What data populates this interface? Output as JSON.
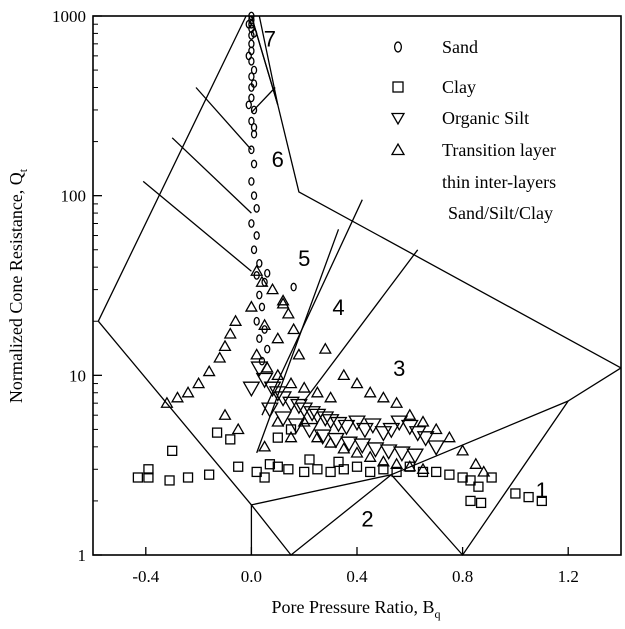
{
  "chart_data": {
    "type": "scatter",
    "xlabel": "Pore Pressure Ratio, B",
    "xlabel_sub": "q",
    "ylabel": "Normalized Cone Resistance, Q",
    "ylabel_sub": "t",
    "xlim": [
      -0.6,
      1.4
    ],
    "ylim": [
      1,
      1000
    ],
    "yscale": "log",
    "xticks": [
      {
        "value": -0.4,
        "label": "-0.4"
      },
      {
        "value": 0.0,
        "label": "0.0"
      },
      {
        "value": 0.4,
        "label": "0.4"
      },
      {
        "value": 0.8,
        "label": "0.8"
      },
      {
        "value": 1.2,
        "label": "1.2"
      }
    ],
    "yticks": [
      {
        "value": 1,
        "label": "1"
      },
      {
        "value": 10,
        "label": "10"
      },
      {
        "value": 100,
        "label": "100"
      },
      {
        "value": 1000,
        "label": "1000"
      }
    ],
    "grid": false,
    "legend_position": "top-right",
    "legend": [
      {
        "name": "Sand",
        "marker": "circle"
      },
      {
        "name": "Clay",
        "marker": "square"
      },
      {
        "name": "Organic Silt",
        "marker": "triangle-down"
      },
      {
        "name": "Transition layer",
        "marker": "triangle-up"
      }
    ],
    "legend_extra_lines": [
      "thin inter-layers",
      "Sand/Silt/Clay"
    ],
    "zone_labels": [
      {
        "label": "1",
        "x": 1.1,
        "y": 2.3
      },
      {
        "label": "2",
        "x": 0.44,
        "y": 1.6
      },
      {
        "label": "3",
        "x": 0.56,
        "y": 11
      },
      {
        "label": "4",
        "x": 0.33,
        "y": 24
      },
      {
        "label": "5",
        "x": 0.2,
        "y": 45
      },
      {
        "label": "6",
        "x": 0.1,
        "y": 160
      },
      {
        "label": "7",
        "x": 0.07,
        "y": 750
      }
    ],
    "zone_boundaries": [
      [
        [
          -0.58,
          20
        ],
        [
          -0.02,
          1000
        ]
      ],
      [
        [
          -0.58,
          20
        ],
        [
          0.0,
          1.9
        ]
      ],
      [
        [
          0.0,
          1.9
        ],
        [
          0.15,
          1
        ],
        [
          0.53,
          2.8
        ],
        [
          0.8,
          1
        ],
        [
          1.2,
          7.2
        ],
        [
          1.4,
          11
        ]
      ],
      [
        [
          0.0,
          1000
        ],
        [
          0.1,
          320
        ],
        [
          0.18,
          105
        ],
        [
          1.4,
          11
        ]
      ],
      [
        [
          0.0,
          1000
        ],
        [
          0.1,
          320
        ],
        [
          0.03,
          1000
        ]
      ],
      [
        [
          0.53,
          2.8
        ],
        [
          1.2,
          7.2
        ]
      ],
      [
        [
          0.0,
          1.9
        ],
        [
          0.53,
          2.8
        ]
      ],
      [
        [
          0.0,
          1.9
        ],
        [
          0.0,
          1
        ]
      ],
      [
        [
          -0.21,
          400
        ],
        [
          0.0,
          180
        ]
      ],
      [
        [
          -0.3,
          210
        ],
        [
          0.0,
          80
        ]
      ],
      [
        [
          -0.41,
          120
        ],
        [
          0.0,
          38
        ]
      ],
      [
        [
          0.09,
          400
        ],
        [
          0.0,
          290
        ]
      ],
      [
        [
          0.02,
          3.7
        ],
        [
          0.33,
          65
        ]
      ],
      [
        [
          0.04,
          6.0
        ],
        [
          0.42,
          95
        ]
      ],
      [
        [
          0.2,
          7.2
        ],
        [
          0.63,
          50
        ]
      ]
    ],
    "series": [
      {
        "name": "Sand",
        "marker": "circle",
        "points": [
          [
            0.0,
            1000
          ],
          [
            0.0,
            950
          ],
          [
            0.0,
            900
          ],
          [
            0.0,
            850
          ],
          [
            0.0,
            780
          ],
          [
            0.0,
            700
          ],
          [
            0.0,
            640
          ],
          [
            0.0,
            560
          ],
          [
            0.01,
            500
          ],
          [
            0.0,
            460
          ],
          [
            0.0,
            400
          ],
          [
            0.0,
            350
          ],
          [
            0.01,
            300
          ],
          [
            0.0,
            260
          ],
          [
            0.01,
            220
          ],
          [
            0.0,
            180
          ],
          [
            0.01,
            150
          ],
          [
            0.0,
            120
          ],
          [
            0.01,
            100
          ],
          [
            0.02,
            85
          ],
          [
            0.0,
            70
          ],
          [
            0.02,
            60
          ],
          [
            0.01,
            50
          ],
          [
            0.03,
            42
          ],
          [
            0.02,
            36
          ],
          [
            0.06,
            37
          ],
          [
            0.05,
            33
          ],
          [
            0.16,
            31
          ],
          [
            0.03,
            28
          ],
          [
            0.04,
            24
          ],
          [
            0.02,
            20
          ],
          [
            0.05,
            18
          ],
          [
            0.03,
            16
          ],
          [
            0.06,
            14
          ],
          [
            0.04,
            12
          ],
          [
            -0.01,
            900
          ],
          [
            0.01,
            800
          ],
          [
            -0.01,
            600
          ],
          [
            0.01,
            420
          ],
          [
            -0.01,
            320
          ],
          [
            0.01,
            240
          ]
        ]
      },
      {
        "name": "Clay",
        "marker": "square",
        "points": [
          [
            -0.43,
            2.7
          ],
          [
            -0.39,
            3.0
          ],
          [
            -0.39,
            2.7
          ],
          [
            -0.31,
            2.6
          ],
          [
            -0.3,
            3.8
          ],
          [
            -0.24,
            2.7
          ],
          [
            -0.16,
            2.8
          ],
          [
            -0.13,
            4.8
          ],
          [
            -0.05,
            3.1
          ],
          [
            -0.08,
            4.4
          ],
          [
            0.02,
            2.9
          ],
          [
            0.05,
            2.7
          ],
          [
            0.07,
            3.2
          ],
          [
            0.1,
            3.1
          ],
          [
            0.14,
            3.0
          ],
          [
            0.2,
            2.9
          ],
          [
            0.25,
            3.0
          ],
          [
            0.3,
            2.9
          ],
          [
            0.35,
            3.0
          ],
          [
            0.4,
            3.1
          ],
          [
            0.45,
            2.9
          ],
          [
            0.5,
            3.0
          ],
          [
            0.55,
            2.9
          ],
          [
            0.6,
            3.1
          ],
          [
            0.65,
            2.9
          ],
          [
            0.7,
            2.9
          ],
          [
            0.75,
            2.8
          ],
          [
            0.8,
            2.7
          ],
          [
            0.83,
            2.6
          ],
          [
            0.86,
            2.4
          ],
          [
            0.83,
            2.0
          ],
          [
            0.87,
            1.95
          ],
          [
            0.91,
            2.7
          ],
          [
            1.0,
            2.2
          ],
          [
            1.05,
            2.1
          ],
          [
            1.1,
            2.0
          ],
          [
            0.15,
            5.0
          ],
          [
            0.1,
            4.5
          ],
          [
            0.22,
            3.4
          ],
          [
            0.33,
            3.3
          ]
        ]
      },
      {
        "name": "Organic Silt",
        "marker": "triangle-down",
        "points": [
          [
            0.05,
            9.5
          ],
          [
            0.08,
            8.5
          ],
          [
            0.1,
            8.0
          ],
          [
            0.12,
            7.5
          ],
          [
            0.15,
            7.0
          ],
          [
            0.18,
            6.8
          ],
          [
            0.2,
            6.5
          ],
          [
            0.23,
            6.2
          ],
          [
            0.25,
            6.0
          ],
          [
            0.28,
            5.8
          ],
          [
            0.3,
            5.6
          ],
          [
            0.33,
            5.4
          ],
          [
            0.36,
            5.2
          ],
          [
            0.4,
            5.5
          ],
          [
            0.43,
            5.0
          ],
          [
            0.46,
            5.3
          ],
          [
            0.5,
            4.8
          ],
          [
            0.53,
            5.0
          ],
          [
            0.56,
            5.5
          ],
          [
            0.6,
            5.2
          ],
          [
            0.63,
            4.8
          ],
          [
            0.66,
            4.5
          ],
          [
            0.7,
            4.0
          ],
          [
            0.0,
            8.5
          ],
          [
            0.03,
            11
          ],
          [
            0.07,
            6.5
          ],
          [
            0.12,
            5.8
          ],
          [
            0.17,
            5.3
          ],
          [
            0.22,
            5.0
          ],
          [
            0.27,
            4.6
          ],
          [
            0.32,
            4.4
          ],
          [
            0.37,
            4.2
          ],
          [
            0.42,
            4.1
          ],
          [
            0.47,
            3.9
          ],
          [
            0.52,
            3.8
          ],
          [
            0.57,
            3.7
          ],
          [
            0.62,
            3.6
          ]
        ]
      },
      {
        "name": "Transition layer",
        "marker": "triangle-up",
        "points": [
          [
            -0.32,
            7.0
          ],
          [
            -0.28,
            7.5
          ],
          [
            -0.24,
            8.0
          ],
          [
            -0.2,
            9.0
          ],
          [
            -0.16,
            10.5
          ],
          [
            -0.12,
            12.5
          ],
          [
            -0.1,
            14.5
          ],
          [
            -0.08,
            17
          ],
          [
            -0.06,
            20
          ],
          [
            0.0,
            24
          ],
          [
            0.05,
            19
          ],
          [
            0.1,
            16
          ],
          [
            0.12,
            26
          ],
          [
            0.08,
            30
          ],
          [
            0.14,
            22
          ],
          [
            0.18,
            13
          ],
          [
            0.16,
            18
          ],
          [
            0.28,
            14
          ],
          [
            0.35,
            10
          ],
          [
            0.4,
            9.0
          ],
          [
            0.45,
            8.0
          ],
          [
            0.5,
            7.5
          ],
          [
            0.55,
            7.0
          ],
          [
            0.6,
            6.0
          ],
          [
            0.65,
            5.5
          ],
          [
            0.7,
            5.0
          ],
          [
            0.75,
            4.5
          ],
          [
            0.8,
            3.8
          ],
          [
            0.85,
            3.2
          ],
          [
            0.88,
            2.9
          ],
          [
            0.2,
            5.5
          ],
          [
            0.25,
            4.5
          ],
          [
            0.3,
            4.2
          ],
          [
            0.35,
            3.9
          ],
          [
            0.4,
            3.7
          ],
          [
            0.45,
            3.5
          ],
          [
            0.5,
            3.3
          ],
          [
            0.55,
            3.2
          ],
          [
            0.6,
            3.1
          ],
          [
            0.65,
            3.0
          ],
          [
            0.1,
            5.5
          ],
          [
            0.15,
            4.5
          ],
          [
            0.05,
            4.0
          ],
          [
            -0.05,
            5.0
          ],
          [
            -0.1,
            6.0
          ],
          [
            0.02,
            13
          ],
          [
            0.06,
            11
          ],
          [
            0.1,
            10
          ],
          [
            0.15,
            9.0
          ],
          [
            0.2,
            8.5
          ],
          [
            0.25,
            8.0
          ],
          [
            0.3,
            7.5
          ],
          [
            0.02,
            38
          ],
          [
            0.04,
            33
          ],
          [
            0.12,
            25
          ]
        ]
      }
    ]
  }
}
